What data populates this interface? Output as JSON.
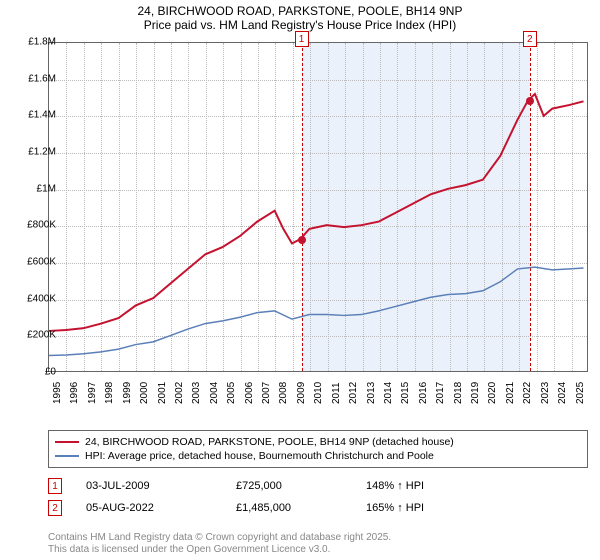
{
  "title": {
    "line1": "24, BIRCHWOOD ROAD, PARKSTONE, POOLE, BH14 9NP",
    "line2": "Price paid vs. HM Land Registry's House Price Index (HPI)"
  },
  "chart": {
    "type": "line",
    "background_color": "#ffffff",
    "shaded_region_color": "#eaf1fb",
    "grid_color": "#bbbbbb",
    "border_color": "#666666",
    "x_range": [
      1995,
      2026
    ],
    "y_range": [
      0,
      1800000
    ],
    "y_ticks": [
      0,
      200000,
      400000,
      600000,
      800000,
      1000000,
      1200000,
      1400000,
      1600000,
      1800000
    ],
    "y_tick_labels": [
      "£0",
      "£200K",
      "£400K",
      "£600K",
      "£800K",
      "£1M",
      "£1.2M",
      "£1.4M",
      "£1.6M",
      "£1.8M"
    ],
    "x_ticks": [
      1995,
      1996,
      1997,
      1998,
      1999,
      2000,
      2001,
      2002,
      2003,
      2004,
      2005,
      2006,
      2007,
      2008,
      2009,
      2010,
      2011,
      2012,
      2013,
      2014,
      2015,
      2016,
      2017,
      2018,
      2019,
      2020,
      2021,
      2022,
      2023,
      2024,
      2025
    ],
    "shaded_start": 2009.5,
    "shaded_end": 2022.6,
    "series": [
      {
        "name": "property_price",
        "color": "#c4122f",
        "width": 2,
        "points": [
          [
            1995,
            220000
          ],
          [
            1996,
            225000
          ],
          [
            1997,
            235000
          ],
          [
            1998,
            260000
          ],
          [
            1999,
            290000
          ],
          [
            2000,
            360000
          ],
          [
            2001,
            400000
          ],
          [
            2002,
            480000
          ],
          [
            2003,
            560000
          ],
          [
            2004,
            640000
          ],
          [
            2005,
            680000
          ],
          [
            2006,
            740000
          ],
          [
            2007,
            820000
          ],
          [
            2008,
            880000
          ],
          [
            2008.5,
            780000
          ],
          [
            2009,
            700000
          ],
          [
            2009.5,
            725000
          ],
          [
            2010,
            780000
          ],
          [
            2011,
            800000
          ],
          [
            2012,
            790000
          ],
          [
            2013,
            800000
          ],
          [
            2014,
            820000
          ],
          [
            2015,
            870000
          ],
          [
            2016,
            920000
          ],
          [
            2017,
            970000
          ],
          [
            2018,
            1000000
          ],
          [
            2019,
            1020000
          ],
          [
            2020,
            1050000
          ],
          [
            2021,
            1180000
          ],
          [
            2022,
            1380000
          ],
          [
            2022.6,
            1485000
          ],
          [
            2023,
            1520000
          ],
          [
            2023.5,
            1400000
          ],
          [
            2024,
            1440000
          ],
          [
            2025,
            1460000
          ],
          [
            2025.8,
            1480000
          ]
        ]
      },
      {
        "name": "hpi",
        "color": "#5b7fb8",
        "width": 1.5,
        "points": [
          [
            1995,
            85000
          ],
          [
            1996,
            88000
          ],
          [
            1997,
            95000
          ],
          [
            1998,
            105000
          ],
          [
            1999,
            120000
          ],
          [
            2000,
            145000
          ],
          [
            2001,
            160000
          ],
          [
            2002,
            195000
          ],
          [
            2003,
            230000
          ],
          [
            2004,
            260000
          ],
          [
            2005,
            275000
          ],
          [
            2006,
            295000
          ],
          [
            2007,
            320000
          ],
          [
            2008,
            330000
          ],
          [
            2009,
            285000
          ],
          [
            2010,
            310000
          ],
          [
            2011,
            310000
          ],
          [
            2012,
            305000
          ],
          [
            2013,
            310000
          ],
          [
            2014,
            330000
          ],
          [
            2015,
            355000
          ],
          [
            2016,
            380000
          ],
          [
            2017,
            405000
          ],
          [
            2018,
            420000
          ],
          [
            2019,
            425000
          ],
          [
            2020,
            440000
          ],
          [
            2021,
            490000
          ],
          [
            2022,
            560000
          ],
          [
            2023,
            570000
          ],
          [
            2024,
            555000
          ],
          [
            2025,
            560000
          ],
          [
            2025.8,
            565000
          ]
        ]
      }
    ],
    "markers": [
      {
        "num": "1",
        "x": 2009.5,
        "y": 725000,
        "dot_color": "#c4122f"
      },
      {
        "num": "2",
        "x": 2022.6,
        "y": 1485000,
        "dot_color": "#c4122f"
      }
    ]
  },
  "legend": {
    "items": [
      {
        "color": "#c4122f",
        "label": "24, BIRCHWOOD ROAD, PARKSTONE, POOLE, BH14 9NP (detached house)"
      },
      {
        "color": "#5b7fb8",
        "label": "HPI: Average price, detached house, Bournemouth Christchurch and Poole"
      }
    ]
  },
  "sales": [
    {
      "num": "1",
      "date": "03-JUL-2009",
      "price": "£725,000",
      "hpi": "148% ↑ HPI"
    },
    {
      "num": "2",
      "date": "05-AUG-2022",
      "price": "£1,485,000",
      "hpi": "165% ↑ HPI"
    }
  ],
  "footer": {
    "line1": "Contains HM Land Registry data © Crown copyright and database right 2025.",
    "line2": "This data is licensed under the Open Government Licence v3.0."
  }
}
